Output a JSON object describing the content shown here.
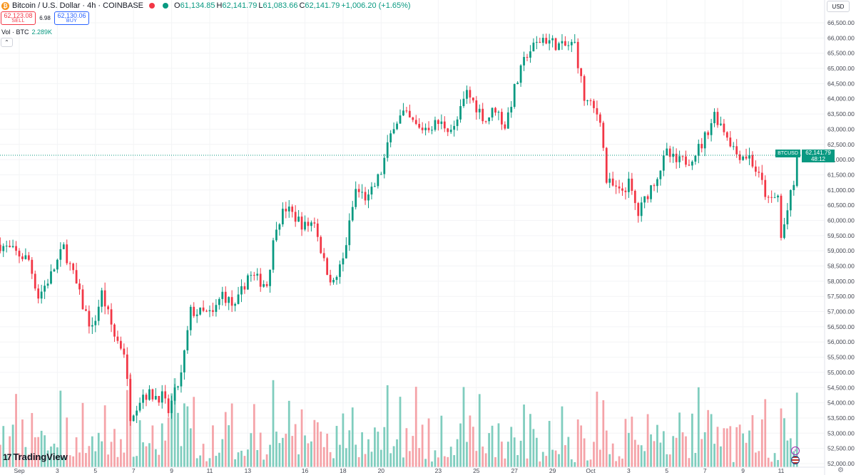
{
  "header": {
    "symbol_title": "Bitcoin / U.S. Dollar · 4h · COINBASE",
    "logo_icon": "bitcoin-icon",
    "ohlc": {
      "o_label": "O",
      "o_value": "61,134.85",
      "h_label": "H",
      "h_value": "62,141.79",
      "l_label": "L",
      "l_value": "61,083.66",
      "c_label": "C",
      "c_value": "62,141.79",
      "change": "+1,006.20 (+1.65%)"
    }
  },
  "trade": {
    "sell_price": "62,123.08",
    "sell_label": "SELL",
    "spread": "6.98",
    "buy_price": "62,130.06",
    "buy_label": "BUY"
  },
  "volume_legend": {
    "label": "Vol · BTC",
    "value": "2.289K"
  },
  "currency": "USD",
  "last_price": {
    "symbol": "BTCUSD",
    "price": "62,141.79",
    "countdown": "48:12"
  },
  "branding": "TradingView",
  "colors": {
    "up": "#089981",
    "down": "#f23645",
    "up_vol": "#7fcdbe",
    "down_vol": "#f5a3a8"
  },
  "chart_data": {
    "type": "candlestick",
    "interval": "4h",
    "y_ticks": [
      "52,000.00",
      "52,500.00",
      "53,000.00",
      "53,500.00",
      "54,000.00",
      "54,500.00",
      "55,000.00",
      "55,500.00",
      "56,000.00",
      "56,500.00",
      "57,000.00",
      "57,500.00",
      "58,000.00",
      "58,500.00",
      "59,000.00",
      "59,500.00",
      "60,000.00",
      "60,500.00",
      "61,000.00",
      "61,500.00",
      "62,000.00",
      "62,500.00",
      "63,000.00",
      "63,500.00",
      "64,000.00",
      "64,500.00",
      "65,000.00",
      "65,500.00",
      "66,000.00",
      "66,500.00"
    ],
    "y_range": [
      51750,
      66900
    ],
    "x_ticks": [
      "Sep",
      "3",
      "5",
      "7",
      "9",
      "11",
      "13",
      "16",
      "18",
      "20",
      "23",
      "25",
      "27",
      "29",
      "Oct",
      "3",
      "5",
      "7",
      "9",
      "11"
    ],
    "x_tick_dates": [
      "2024-09-01",
      "2024-09-03",
      "2024-09-05",
      "2024-09-07",
      "2024-09-09",
      "2024-09-11",
      "2024-09-13",
      "2024-09-16",
      "2024-09-18",
      "2024-09-20",
      "2024-09-23",
      "2024-09-25",
      "2024-09-27",
      "2024-09-29",
      "2024-10-01",
      "2024-10-03",
      "2024-10-05",
      "2024-10-07",
      "2024-10-09",
      "2024-10-11"
    ],
    "anchors": [
      [
        "2024-08-31 00:00",
        59200
      ],
      [
        "2024-09-01 12:00",
        58700
      ],
      [
        "2024-09-02 00:00",
        57500
      ],
      [
        "2024-09-02 16:00",
        58200
      ],
      [
        "2024-09-03 08:00",
        59100
      ],
      [
        "2024-09-03 20:00",
        58200
      ],
      [
        "2024-09-04 08:00",
        57200
      ],
      [
        "2024-09-04 20:00",
        56400
      ],
      [
        "2024-09-05 08:00",
        57600
      ],
      [
        "2024-09-06 00:00",
        56200
      ],
      [
        "2024-09-06 12:00",
        55700
      ],
      [
        "2024-09-06 20:00",
        53600
      ],
      [
        "2024-09-07 12:00",
        54300
      ],
      [
        "2024-09-08 12:00",
        54200
      ],
      [
        "2024-09-08 20:00",
        53700
      ],
      [
        "2024-09-09 12:00",
        54900
      ],
      [
        "2024-09-10 00:00",
        57000
      ],
      [
        "2024-09-11 04:00",
        56900
      ],
      [
        "2024-09-11 16:00",
        57600
      ],
      [
        "2024-09-12 08:00",
        57100
      ],
      [
        "2024-09-13 00:00",
        58200
      ],
      [
        "2024-09-14 00:00",
        57900
      ],
      [
        "2024-09-14 12:00",
        59900
      ],
      [
        "2024-09-15 00:00",
        60400
      ],
      [
        "2024-09-16 00:00",
        59800
      ],
      [
        "2024-09-16 12:00",
        60000
      ],
      [
        "2024-09-17 00:00",
        58600
      ],
      [
        "2024-09-17 12:00",
        57900
      ],
      [
        "2024-09-18 00:00",
        58700
      ],
      [
        "2024-09-18 16:00",
        61000
      ],
      [
        "2024-09-19 08:00",
        60700
      ],
      [
        "2024-09-20 00:00",
        61600
      ],
      [
        "2024-09-20 16:00",
        63200
      ],
      [
        "2024-09-21 04:00",
        63500
      ],
      [
        "2024-09-22 00:00",
        63000
      ],
      [
        "2024-09-23 00:00",
        63200
      ],
      [
        "2024-09-23 20:00",
        63000
      ],
      [
        "2024-09-24 12:00",
        64200
      ],
      [
        "2024-09-25 12:00",
        63300
      ],
      [
        "2024-09-26 00:00",
        63700
      ],
      [
        "2024-09-26 12:00",
        63100
      ],
      [
        "2024-09-27 00:00",
        64300
      ],
      [
        "2024-09-27 16:00",
        65500
      ],
      [
        "2024-09-28 12:00",
        66000
      ],
      [
        "2024-09-29 12:00",
        65700
      ],
      [
        "2024-09-30 04:00",
        65800
      ],
      [
        "2024-09-30 16:00",
        64000
      ],
      [
        "2024-10-01 12:00",
        63400
      ],
      [
        "2024-10-01 20:00",
        61300
      ],
      [
        "2024-10-02 12:00",
        60900
      ],
      [
        "2024-10-03 00:00",
        61200
      ],
      [
        "2024-10-03 12:00",
        60200
      ],
      [
        "2024-10-04 00:00",
        60900
      ],
      [
        "2024-10-04 12:00",
        61500
      ],
      [
        "2024-10-05 00:00",
        62200
      ],
      [
        "2024-10-05 12:00",
        61900
      ],
      [
        "2024-10-06 04:00",
        62000
      ],
      [
        "2024-10-06 20:00",
        62500
      ],
      [
        "2024-10-07 12:00",
        63500
      ],
      [
        "2024-10-08 00:00",
        63000
      ],
      [
        "2024-10-08 16:00",
        62200
      ],
      [
        "2024-10-09 08:00",
        62100
      ],
      [
        "2024-10-10 00:00",
        61200
      ],
      [
        "2024-10-10 08:00",
        60600
      ],
      [
        "2024-10-10 20:00",
        60800
      ],
      [
        "2024-10-11 00:00",
        59400
      ],
      [
        "2024-10-11 12:00",
        60800
      ],
      [
        "2024-10-11 16:00",
        61134.85
      ],
      [
        "2024-10-11 20:00",
        62141.79
      ]
    ]
  }
}
